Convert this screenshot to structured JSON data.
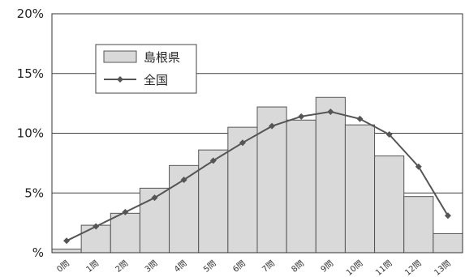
{
  "chart_data": {
    "type": "bar",
    "categories": [
      "0問",
      "1問",
      "2問",
      "3問",
      "4問",
      "5問",
      "6問",
      "7問",
      "8問",
      "9問",
      "10問",
      "11問",
      "12問",
      "13問"
    ],
    "series": [
      {
        "name": "島根県",
        "kind": "bar",
        "values": [
          0.3,
          2.3,
          3.3,
          5.4,
          7.3,
          8.6,
          10.5,
          12.2,
          11.1,
          13.0,
          10.7,
          8.1,
          4.7,
          1.6
        ]
      },
      {
        "name": "全国",
        "kind": "line",
        "values": [
          1.0,
          2.2,
          3.4,
          4.6,
          6.1,
          7.7,
          9.2,
          10.6,
          11.4,
          11.8,
          11.2,
          9.9,
          7.2,
          3.1
        ]
      }
    ],
    "y_tick_labels": [
      "%",
      "5%",
      "10%",
      "15%",
      "20%"
    ],
    "y_tick_values": [
      0,
      5,
      10,
      15,
      20
    ],
    "ylim": [
      0,
      20
    ],
    "grid": true,
    "legend_position": "top-left",
    "colors": {
      "bar_fill": "#d9d9d9",
      "bar_stroke": "#555555",
      "line": "#555555",
      "marker": "#555555",
      "grid": "#444444"
    }
  }
}
